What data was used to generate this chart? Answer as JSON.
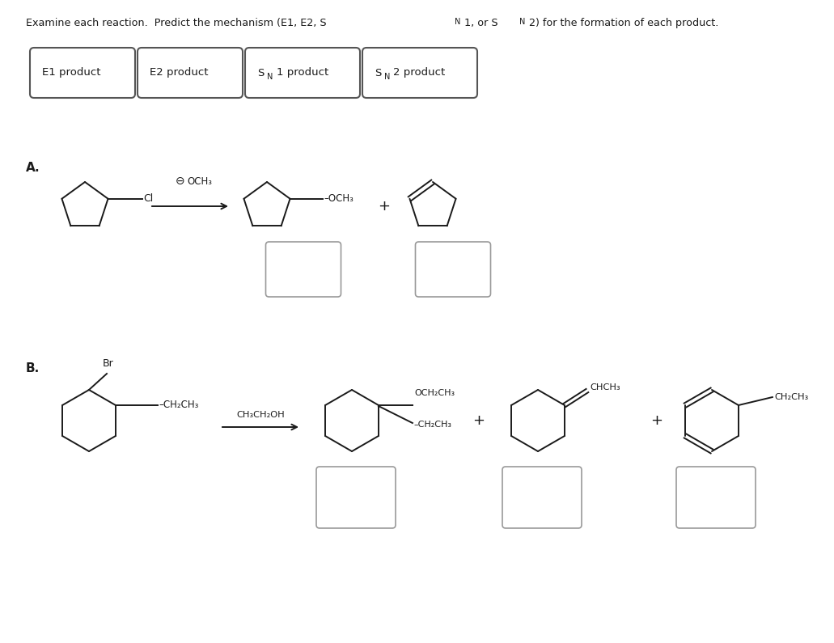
{
  "bg": "#ffffff",
  "title": "Examine each reaction.  Predict the mechanism (E1, E2, S",
  "title2": "1, or S",
  "title3": "2) for the formation of each product.",
  "fig_w": 10.31,
  "fig_h": 7.95,
  "legend": [
    "E1 product",
    "E2 product",
    "S",
    "1 product",
    "S",
    "2 product"
  ]
}
